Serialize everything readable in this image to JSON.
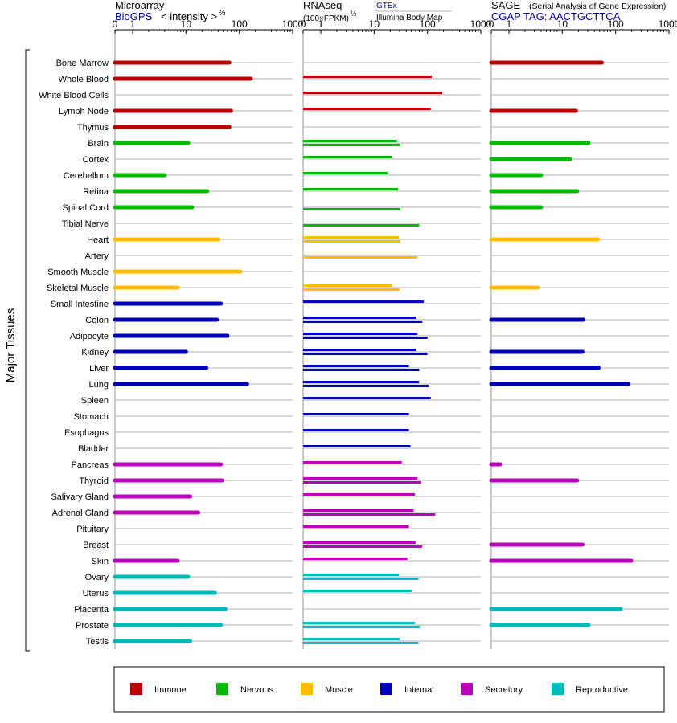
{
  "y_axis_label": "Major Tissues",
  "colors": {
    "Immune": "#bb0000",
    "Nervous": "#00bb00",
    "Muscle": "#ffbb00",
    "Internal": "#0000bb",
    "Secretory": "#bb00bb",
    "Reproductive": "#00bbbb",
    "gridline": "#999999",
    "link": "#000099"
  },
  "legend": [
    {
      "name": "Immune",
      "key": "Immune"
    },
    {
      "name": "Nervous",
      "key": "Nervous"
    },
    {
      "name": "Muscle",
      "key": "Muscle"
    },
    {
      "name": "Internal",
      "key": "Internal"
    },
    {
      "name": "Secretory",
      "key": "Secretory"
    },
    {
      "name": "Reproductive",
      "key": "Reproductive"
    }
  ],
  "panels": [
    {
      "title": "Microarray",
      "subtitle_link": "BioGPS",
      "subtitle_text": "< intensity >",
      "subtitle_sup": "⅔",
      "ticks": [
        "0",
        "1",
        "10",
        "100",
        "1000"
      ]
    },
    {
      "title": "RNAseq",
      "subtitle_text": "(100×FPKM)",
      "subtitle_sup": "½",
      "source_1": "GTEx",
      "source_2": "Illumina Body Map",
      "ticks": [
        "0",
        "1",
        "10",
        "100",
        "1000"
      ]
    },
    {
      "title": "SAGE",
      "title_note": "(Serial Analysis of Gene Expression)",
      "subtitle_text": "CGAP TAG: AACTGCTTCA",
      "ticks": [
        "0",
        "1",
        "10",
        "100",
        "1000"
      ]
    }
  ],
  "chart_data": {
    "type": "bar",
    "orientation": "horizontal",
    "x_scale": "custom: 0 then log10 from 1 to 1000",
    "xlim": [
      0,
      1000
    ],
    "grid": true,
    "legend_position": "bottom",
    "categories": [
      "Bone Marrow",
      "Whole Blood",
      "White Blood Cells",
      "Lymph Node",
      "Thymus",
      "Brain",
      "Cortex",
      "Cerebellum",
      "Retina",
      "Spinal Cord",
      "Tibial Nerve",
      "Heart",
      "Artery",
      "Smooth Muscle",
      "Skeletal Muscle",
      "Small Intestine",
      "Colon",
      "Adipocyte",
      "Kidney",
      "Liver",
      "Lung",
      "Spleen",
      "Stomach",
      "Esophagus",
      "Bladder",
      "Pancreas",
      "Thyroid",
      "Salivary Gland",
      "Adrenal Gland",
      "Pituitary",
      "Breast",
      "Skin",
      "Ovary",
      "Uterus",
      "Placenta",
      "Prostate",
      "Testis"
    ],
    "groups": [
      "Immune",
      "Immune",
      "Immune",
      "Immune",
      "Immune",
      "Nervous",
      "Nervous",
      "Nervous",
      "Nervous",
      "Nervous",
      "Nervous",
      "Muscle",
      "Muscle",
      "Muscle",
      "Muscle",
      "Internal",
      "Internal",
      "Internal",
      "Internal",
      "Internal",
      "Internal",
      "Internal",
      "Internal",
      "Internal",
      "Internal",
      "Secretory",
      "Secretory",
      "Secretory",
      "Secretory",
      "Secretory",
      "Secretory",
      "Secretory",
      "Reproductive",
      "Reproductive",
      "Reproductive",
      "Reproductive",
      "Reproductive"
    ],
    "series": [
      {
        "name": "Microarray",
        "values": [
          65,
          165,
          0,
          70,
          65,
          11,
          0,
          4,
          25,
          13,
          0,
          40,
          0,
          105,
          7,
          45,
          38,
          60,
          10,
          24,
          140,
          0,
          0,
          0,
          0,
          45,
          48,
          12,
          17,
          0,
          0,
          7,
          11,
          35,
          55,
          45,
          12
        ]
      },
      {
        "name": "RNAseq GTEx",
        "values": [
          0,
          120,
          190,
          115,
          0,
          27,
          22,
          18,
          28,
          0,
          0,
          29,
          0,
          0,
          22,
          85,
          60,
          65,
          60,
          45,
          70,
          115,
          45,
          45,
          48,
          33,
          65,
          58,
          55,
          45,
          60,
          42,
          29,
          50,
          0,
          58,
          30
        ]
      },
      {
        "name": "RNAseq Illumina Body Map",
        "values": [
          0,
          0,
          0,
          0,
          0,
          31,
          0,
          0,
          0,
          31,
          70,
          31,
          65,
          0,
          30,
          0,
          80,
          100,
          100,
          70,
          105,
          0,
          0,
          0,
          0,
          0,
          75,
          0,
          140,
          0,
          80,
          0,
          68,
          0,
          0,
          72,
          68
        ]
      },
      {
        "name": "SAGE",
        "values": [
          55,
          0,
          0,
          18,
          0,
          31,
          14,
          4,
          19,
          4,
          0,
          47,
          0,
          0,
          3.5,
          0,
          25,
          0,
          24,
          48,
          175,
          0,
          0,
          0,
          0,
          0.5,
          19,
          0,
          0,
          0,
          24,
          195,
          0,
          0,
          125,
          31,
          0
        ]
      }
    ]
  }
}
